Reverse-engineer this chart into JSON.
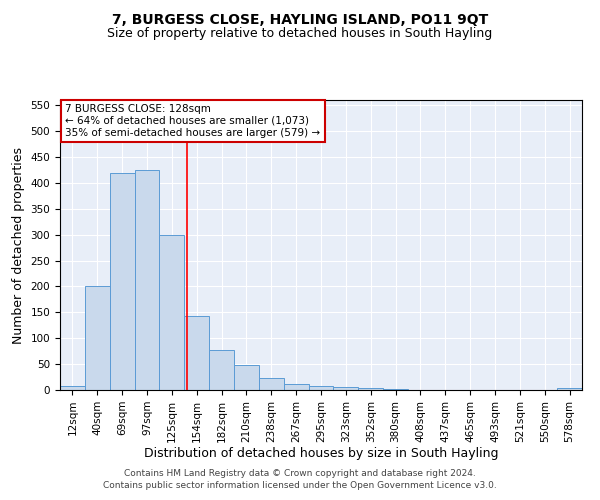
{
  "title": "7, BURGESS CLOSE, HAYLING ISLAND, PO11 9QT",
  "subtitle": "Size of property relative to detached houses in South Hayling",
  "xlabel": "Distribution of detached houses by size in South Hayling",
  "ylabel": "Number of detached properties",
  "categories": [
    "12sqm",
    "40sqm",
    "69sqm",
    "97sqm",
    "125sqm",
    "154sqm",
    "182sqm",
    "210sqm",
    "238sqm",
    "267sqm",
    "295sqm",
    "323sqm",
    "352sqm",
    "380sqm",
    "408sqm",
    "437sqm",
    "465sqm",
    "493sqm",
    "521sqm",
    "550sqm",
    "578sqm"
  ],
  "values": [
    8,
    200,
    420,
    425,
    300,
    143,
    77,
    48,
    23,
    12,
    8,
    5,
    3,
    1,
    0,
    0,
    0,
    0,
    0,
    0,
    3
  ],
  "bar_color": "#c9d9ec",
  "bar_edge_color": "#5b9bd5",
  "ylim": [
    0,
    560
  ],
  "yticks": [
    0,
    50,
    100,
    150,
    200,
    250,
    300,
    350,
    400,
    450,
    500,
    550
  ],
  "red_line_x": 4.62,
  "annotation_text": "7 BURGESS CLOSE: 128sqm\n← 64% of detached houses are smaller (1,073)\n35% of semi-detached houses are larger (579) →",
  "annotation_box_color": "#ffffff",
  "annotation_box_edge_color": "#cc0000",
  "footer1": "Contains HM Land Registry data © Crown copyright and database right 2024.",
  "footer2": "Contains public sector information licensed under the Open Government Licence v3.0.",
  "title_fontsize": 10,
  "subtitle_fontsize": 9,
  "tick_fontsize": 7.5,
  "label_fontsize": 9,
  "bg_color": "#e8eef8"
}
